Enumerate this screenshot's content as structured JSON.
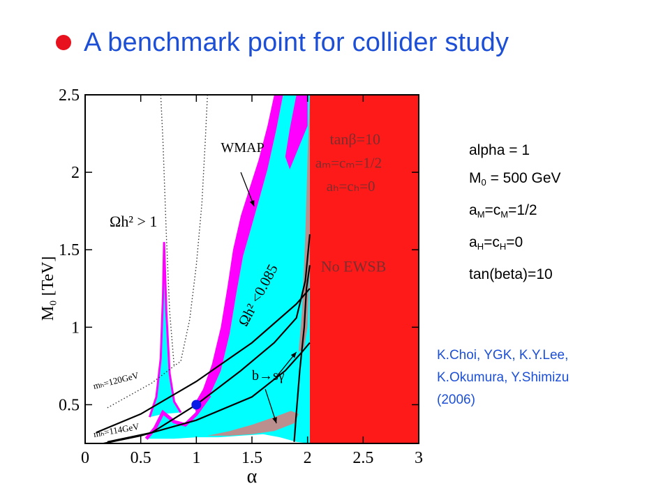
{
  "slide": {
    "title": "A benchmark point for collider study",
    "bullet_color": "#e8121f",
    "title_color": "#1c4fd6"
  },
  "params": {
    "alpha": "alpha = 1",
    "m0_main": "M",
    "m0_sub": "0",
    "m0_rest": " = 500 GeV",
    "am_a": "a",
    "am_a_sub": "M",
    "am_c": "=c",
    "am_c_sub": "M",
    "am_rest": "=1/2",
    "ah_a": "a",
    "ah_a_sub": "H",
    "ah_c": "=c",
    "ah_c_sub": "H",
    "ah_rest": "=0",
    "tanbeta": "tan(beta)=10"
  },
  "references": {
    "line1": "K.Choi, YGK, K.Y.Lee,",
    "line2": "K.Okumura, Y.Shimizu",
    "line3": "(2006)"
  },
  "chart_data": {
    "type": "area",
    "xlabel": "α",
    "ylabel": "M₀ [TeV]",
    "xlim": [
      0,
      3
    ],
    "ylim": [
      0.25,
      2.5
    ],
    "x_ticks": [
      {
        "v": 0,
        "t": "0"
      },
      {
        "v": 0.5,
        "t": "0.5"
      },
      {
        "v": 1,
        "t": "1"
      },
      {
        "v": 1.5,
        "t": "1.5"
      },
      {
        "v": 2,
        "t": "2"
      },
      {
        "v": 2.5,
        "t": "2.5"
      },
      {
        "v": 3,
        "t": "3"
      }
    ],
    "y_ticks": [
      {
        "v": 0.5,
        "t": "0.5"
      },
      {
        "v": 1,
        "t": "1"
      },
      {
        "v": 1.5,
        "t": "1.5"
      },
      {
        "v": 2,
        "t": "2"
      },
      {
        "v": 2.5,
        "t": "2.5"
      }
    ],
    "colors": {
      "no_ewsb": "#ff1a1a",
      "relic_allowed": "#00ffff",
      "wmap": "#ff00ff",
      "excluded_brown": "#bc8f8f",
      "benchmark": "#0a1ae6"
    },
    "regions": {
      "no_ewsb": [
        [
          2.02,
          0.25
        ],
        [
          3.0,
          0.25
        ],
        [
          3.0,
          2.5
        ],
        [
          2.02,
          2.5
        ]
      ],
      "cyan": [
        [
          0.55,
          0.28
        ],
        [
          0.63,
          0.35
        ],
        [
          0.7,
          0.45
        ],
        [
          0.8,
          0.39
        ],
        [
          0.9,
          0.37
        ],
        [
          1.0,
          0.44
        ],
        [
          1.12,
          0.56
        ],
        [
          1.22,
          0.72
        ],
        [
          1.3,
          0.96
        ],
        [
          1.36,
          1.22
        ],
        [
          1.42,
          1.46
        ],
        [
          1.5,
          1.66
        ],
        [
          1.57,
          1.84
        ],
        [
          1.64,
          2.02
        ],
        [
          1.72,
          2.28
        ],
        [
          1.78,
          2.5
        ],
        [
          2.02,
          2.5
        ],
        [
          2.02,
          0.25
        ],
        [
          1.9,
          0.26
        ],
        [
          1.75,
          0.29
        ],
        [
          1.6,
          0.31
        ],
        [
          1.4,
          0.3
        ],
        [
          1.2,
          0.29
        ],
        [
          1.0,
          0.29
        ],
        [
          0.8,
          0.28
        ]
      ],
      "cyan_spike": [
        [
          0.58,
          0.42
        ],
        [
          0.64,
          0.55
        ],
        [
          0.68,
          0.8
        ],
        [
          0.7,
          1.2
        ],
        [
          0.71,
          1.55
        ],
        [
          0.73,
          1.1
        ],
        [
          0.76,
          0.7
        ],
        [
          0.8,
          0.52
        ],
        [
          0.86,
          0.45
        ],
        [
          0.7,
          0.44
        ]
      ],
      "magenta": [
        [
          1.0,
          0.44
        ],
        [
          1.12,
          0.56
        ],
        [
          1.22,
          0.72
        ],
        [
          1.3,
          0.96
        ],
        [
          1.36,
          1.22
        ],
        [
          1.42,
          1.46
        ],
        [
          1.5,
          1.66
        ],
        [
          1.57,
          1.84
        ],
        [
          1.64,
          2.02
        ],
        [
          1.72,
          2.28
        ],
        [
          1.78,
          2.5
        ],
        [
          1.7,
          2.5
        ],
        [
          1.64,
          2.3
        ],
        [
          1.56,
          2.08
        ],
        [
          1.48,
          1.9
        ],
        [
          1.4,
          1.72
        ],
        [
          1.33,
          1.5
        ],
        [
          1.28,
          1.26
        ],
        [
          1.22,
          1.0
        ],
        [
          1.14,
          0.76
        ],
        [
          1.06,
          0.6
        ],
        [
          0.98,
          0.5
        ]
      ],
      "magenta_right": [
        [
          1.84,
          2.02
        ],
        [
          1.92,
          2.16
        ],
        [
          2.0,
          2.3
        ],
        [
          2.0,
          2.5
        ],
        [
          1.9,
          2.5
        ],
        [
          1.84,
          2.28
        ],
        [
          1.8,
          2.1
        ]
      ],
      "brown_strip": [
        [
          1.92,
          0.84
        ],
        [
          1.95,
          1.1
        ],
        [
          1.98,
          1.6
        ],
        [
          2.0,
          2.1
        ],
        [
          2.02,
          2.5
        ],
        [
          2.02,
          1.4
        ],
        [
          2.0,
          1.0
        ],
        [
          1.97,
          0.87
        ]
      ],
      "brown_bottom": [
        [
          1.1,
          0.3
        ],
        [
          1.3,
          0.33
        ],
        [
          1.5,
          0.37
        ],
        [
          1.7,
          0.42
        ],
        [
          1.85,
          0.46
        ],
        [
          1.92,
          0.44
        ],
        [
          1.88,
          0.38
        ],
        [
          1.7,
          0.33
        ],
        [
          1.5,
          0.31
        ],
        [
          1.3,
          0.3
        ]
      ]
    },
    "curves": {
      "wmap_edge_left": [
        [
          0.55,
          0.28
        ],
        [
          0.63,
          0.35
        ],
        [
          0.7,
          0.45
        ],
        [
          0.8,
          0.39
        ],
        [
          0.9,
          0.37
        ],
        [
          1.0,
          0.44
        ],
        [
          1.12,
          0.56
        ]
      ],
      "mh120": [
        [
          0.1,
          0.32
        ],
        [
          0.5,
          0.44
        ],
        [
          1.0,
          0.65
        ],
        [
          1.5,
          0.9
        ],
        [
          1.9,
          1.15
        ],
        [
          2.02,
          1.25
        ]
      ],
      "mh114": [
        [
          0.1,
          0.24
        ],
        [
          0.5,
          0.3
        ],
        [
          1.0,
          0.4
        ],
        [
          1.5,
          0.55
        ],
        [
          1.8,
          0.72
        ],
        [
          1.95,
          0.84
        ],
        [
          2.02,
          0.9
        ]
      ],
      "relic_boundary": [
        [
          0.2,
          0.26
        ],
        [
          0.6,
          0.32
        ],
        [
          1.0,
          0.5
        ],
        [
          1.4,
          0.72
        ],
        [
          1.7,
          0.9
        ],
        [
          1.9,
          1.06
        ],
        [
          1.98,
          1.3
        ],
        [
          2.02,
          1.6
        ]
      ],
      "ewsb_edge": [
        [
          1.88,
          0.26
        ],
        [
          1.9,
          0.45
        ],
        [
          1.93,
          0.72
        ],
        [
          1.97,
          1.0
        ],
        [
          1.99,
          1.25
        ],
        [
          2.02,
          1.4
        ]
      ],
      "omega_dotted_a": [
        [
          0.68,
          2.5
        ],
        [
          0.7,
          2.2
        ],
        [
          0.73,
          1.6
        ],
        [
          0.76,
          1.1
        ],
        [
          0.8,
          0.75
        ]
      ],
      "omega_dotted_b": [
        [
          1.1,
          2.5
        ],
        [
          1.08,
          2.2
        ],
        [
          1.05,
          1.8
        ],
        [
          1.0,
          1.4
        ],
        [
          0.94,
          1.05
        ],
        [
          0.86,
          0.78
        ],
        [
          0.8,
          0.75
        ]
      ],
      "omega_dotted_low": [
        [
          0.2,
          0.48
        ],
        [
          0.4,
          0.56
        ],
        [
          0.6,
          0.64
        ],
        [
          0.8,
          0.75
        ]
      ],
      "benchmark": [
        1.0,
        0.5
      ]
    },
    "annotations": {
      "omega_gt1": "Ωh² > 1",
      "wmap": "WMAP",
      "tanb": "tanβ=10",
      "am_cm": "aₘ=cₘ=1/2",
      "ah_ch": "aₕ=cₕ=0",
      "no_ewsb": "No EWSB",
      "omega_lt": "Ωh² <0.085",
      "bsg": "b→sγ",
      "mh120": "mₕ=120GeV",
      "mh114": "mₕ=114GeV"
    }
  }
}
